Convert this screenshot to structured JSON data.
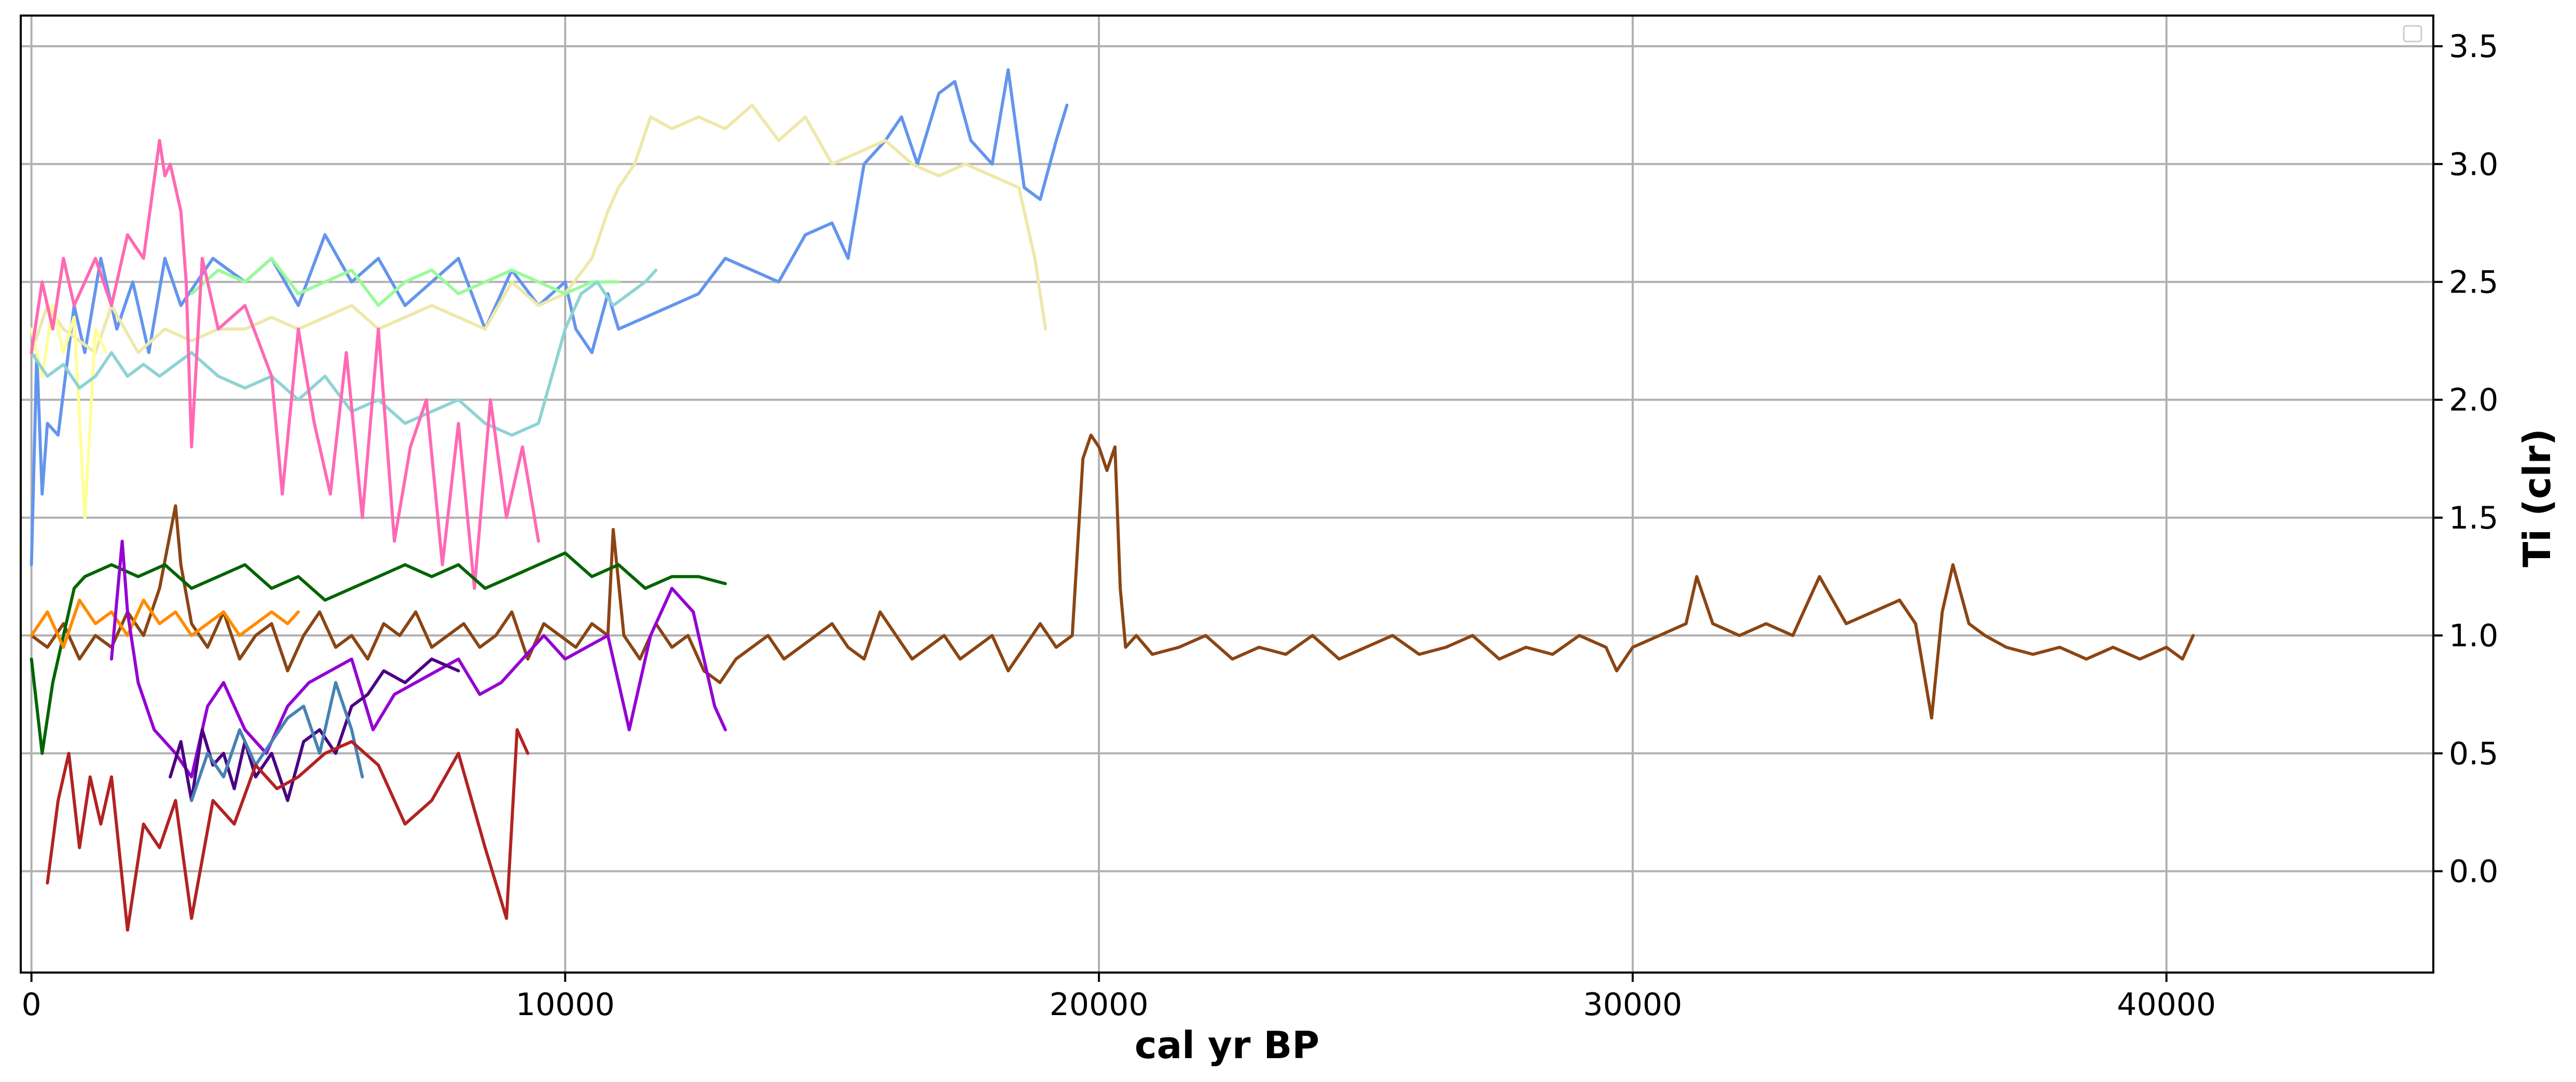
{
  "chart_data": {
    "type": "line",
    "title": "",
    "xlabel": "cal yr BP",
    "ylabel": "Ti (clr)",
    "xlim": [
      -200,
      45000
    ],
    "ylim": [
      -0.43,
      3.63
    ],
    "xticks": [
      0,
      10000,
      20000,
      30000,
      40000
    ],
    "xtick_labels": [
      "0",
      "10000",
      "20000",
      "30000",
      "40000"
    ],
    "yticks": [
      0.0,
      0.5,
      1.0,
      1.5,
      2.0,
      2.5,
      3.0,
      3.5
    ],
    "ytick_labels": [
      "0.0",
      "0.5",
      "1.0",
      "1.5",
      "2.0",
      "2.5",
      "3.0",
      "3.5"
    ],
    "y_axis_side": "right",
    "grid": true,
    "legend": {
      "placement": "top-right",
      "entries": []
    },
    "series": [
      {
        "color": "#8B4513",
        "x": [
          0,
          300,
          600,
          900,
          1200,
          1500,
          1800,
          2100,
          2400,
          2700,
          2800,
          3000,
          3300,
          3600,
          3900,
          4200,
          4500,
          4800,
          5100,
          5400,
          5700,
          6000,
          6300,
          6600,
          6900,
          7200,
          7500,
          7800,
          8100,
          8400,
          8700,
          9000,
          9300,
          9600,
          9900,
          10200,
          10500,
          10800,
          10900,
          11100,
          11400,
          11700,
          12000,
          12300,
          12600,
          12900,
          13200,
          13500,
          13800,
          14100,
          14400,
          14700,
          15000,
          15300,
          15600,
          15900,
          16200,
          16500,
          16800,
          17100,
          17400,
          17700,
          18000,
          18300,
          18600,
          18900,
          19200,
          19500,
          19700,
          19850,
          20000,
          20150,
          20300,
          20400,
          20500,
          20700,
          21000,
          21500,
          22000,
          22500,
          23000,
          23500,
          24000,
          24500,
          25000,
          25500,
          26000,
          26500,
          27000,
          27500,
          28000,
          28500,
          29000,
          29500,
          29700,
          30000,
          30500,
          31000,
          31200,
          31500,
          32000,
          32500,
          33000,
          33500,
          34000,
          34500,
          35000,
          35300,
          35600,
          35800,
          36000,
          36300,
          36600,
          37000,
          37500,
          38000,
          38500,
          39000,
          39500,
          40000,
          40300,
          40500
        ],
        "y": [
          1.0,
          0.95,
          1.05,
          0.9,
          1.0,
          0.95,
          1.1,
          1.0,
          1.2,
          1.55,
          1.3,
          1.05,
          0.95,
          1.1,
          0.9,
          1.0,
          1.05,
          0.85,
          1.0,
          1.1,
          0.95,
          1.0,
          0.9,
          1.05,
          1.0,
          1.1,
          0.95,
          1.0,
          1.05,
          0.95,
          1.0,
          1.1,
          0.9,
          1.05,
          1.0,
          0.95,
          1.05,
          1.0,
          1.45,
          1.0,
          0.9,
          1.05,
          0.95,
          1.0,
          0.85,
          0.8,
          0.9,
          0.95,
          1.0,
          0.9,
          0.95,
          1.0,
          1.05,
          0.95,
          0.9,
          1.1,
          1.0,
          0.9,
          0.95,
          1.0,
          0.9,
          0.95,
          1.0,
          0.85,
          0.95,
          1.05,
          0.95,
          1.0,
          1.75,
          1.85,
          1.8,
          1.7,
          1.8,
          1.2,
          0.95,
          1.0,
          0.92,
          0.95,
          1.0,
          0.9,
          0.95,
          0.92,
          1.0,
          0.9,
          0.95,
          1.0,
          0.92,
          0.95,
          1.0,
          0.9,
          0.95,
          0.92,
          1.0,
          0.95,
          0.85,
          0.95,
          1.0,
          1.05,
          1.25,
          1.05,
          1.0,
          1.05,
          1.0,
          1.25,
          1.05,
          1.1,
          1.15,
          1.05,
          0.65,
          1.1,
          1.3,
          1.05,
          1.0,
          0.95,
          0.92,
          0.95,
          0.9,
          0.95,
          0.9,
          0.95,
          0.9,
          1.0
        ]
      },
      {
        "color": "#6495ED",
        "x": [
          0,
          100,
          200,
          300,
          500,
          800,
          1000,
          1300,
          1600,
          1900,
          2200,
          2500,
          2800,
          3100,
          3400,
          3700,
          4000,
          4500,
          5000,
          5500,
          6000,
          6500,
          7000,
          7500,
          8000,
          8500,
          9000,
          9500,
          10000,
          10200,
          10500,
          10800,
          11000,
          11500,
          12000,
          12500,
          13000,
          13500,
          14000,
          14500,
          15000,
          15300,
          15600,
          16000,
          16300,
          16600,
          17000,
          17300,
          17600,
          18000,
          18300,
          18600,
          18900,
          19200,
          19400
        ],
        "y": [
          1.3,
          2.2,
          1.6,
          1.9,
          1.85,
          2.4,
          2.2,
          2.6,
          2.3,
          2.5,
          2.2,
          2.6,
          2.4,
          2.5,
          2.6,
          2.55,
          2.5,
          2.6,
          2.4,
          2.7,
          2.5,
          2.6,
          2.4,
          2.5,
          2.6,
          2.3,
          2.55,
          2.4,
          2.5,
          2.3,
          2.2,
          2.45,
          2.3,
          2.35,
          2.4,
          2.45,
          2.6,
          2.55,
          2.5,
          2.7,
          2.75,
          2.6,
          3.0,
          3.1,
          3.2,
          3.0,
          3.3,
          3.35,
          3.1,
          3.0,
          3.4,
          2.9,
          2.85,
          3.1,
          3.25
        ]
      },
      {
        "color": "#EEE8AA",
        "x": [
          0,
          300,
          600,
          900,
          1200,
          1500,
          2000,
          2500,
          3000,
          3500,
          4000,
          4500,
          5000,
          5500,
          6000,
          6500,
          7000,
          7500,
          8000,
          8500,
          9000,
          9500,
          10000,
          10500,
          10800,
          11000,
          11300,
          11600,
          12000,
          12500,
          13000,
          13500,
          14000,
          14500,
          15000,
          15500,
          16000,
          16500,
          17000,
          17500,
          18000,
          18500,
          18800,
          19000
        ],
        "y": [
          2.2,
          2.4,
          2.3,
          2.25,
          2.2,
          2.4,
          2.2,
          2.3,
          2.25,
          2.3,
          2.3,
          2.35,
          2.3,
          2.35,
          2.4,
          2.3,
          2.35,
          2.4,
          2.35,
          2.3,
          2.5,
          2.4,
          2.45,
          2.6,
          2.8,
          2.9,
          3.0,
          3.2,
          3.15,
          3.2,
          3.15,
          3.25,
          3.1,
          3.2,
          3.0,
          3.05,
          3.1,
          3.0,
          2.95,
          3.0,
          2.95,
          2.9,
          2.6,
          2.3
        ]
      },
      {
        "color": "#FFFF99",
        "x": [
          0,
          200,
          400,
          600,
          800,
          1000,
          1200,
          1400
        ],
        "y": [
          2.3,
          2.1,
          2.4,
          2.2,
          2.35,
          1.5,
          2.3,
          2.2
        ]
      },
      {
        "color": "#98FB98",
        "x": [
          3000,
          3500,
          4000,
          4500,
          5000,
          5500,
          6000,
          6500,
          7000,
          7500,
          8000,
          8500,
          9000,
          9500,
          10000,
          10500,
          11000
        ],
        "y": [
          2.45,
          2.55,
          2.5,
          2.6,
          2.45,
          2.5,
          2.55,
          2.4,
          2.5,
          2.55,
          2.45,
          2.5,
          2.55,
          2.5,
          2.45,
          2.5,
          2.5
        ]
      },
      {
        "color": "#8FD3D3",
        "x": [
          0,
          300,
          600,
          900,
          1200,
          1500,
          1800,
          2100,
          2400,
          2700,
          3000,
          3500,
          4000,
          4500,
          5000,
          5500,
          6000,
          6500,
          7000,
          7500,
          8000,
          8500,
          9000,
          9500,
          10000,
          10300,
          10600,
          10900,
          11200,
          11500,
          11700
        ],
        "y": [
          2.2,
          2.1,
          2.15,
          2.05,
          2.1,
          2.2,
          2.1,
          2.15,
          2.1,
          2.15,
          2.2,
          2.1,
          2.05,
          2.1,
          2.0,
          2.1,
          1.95,
          2.0,
          1.9,
          1.95,
          2.0,
          1.9,
          1.85,
          1.9,
          2.3,
          2.45,
          2.5,
          2.4,
          2.45,
          2.5,
          2.55
        ]
      },
      {
        "color": "#FF69B4",
        "x": [
          0,
          200,
          400,
          600,
          800,
          1000,
          1200,
          1500,
          1800,
          2100,
          2400,
          2500,
          2600,
          2800,
          2900,
          3000,
          3100,
          3200,
          3500,
          4000,
          4500,
          4700,
          5000,
          5300,
          5600,
          5900,
          6200,
          6500,
          6800,
          7100,
          7400,
          7700,
          8000,
          8300,
          8600,
          8900,
          9200,
          9500
        ],
        "y": [
          2.2,
          2.5,
          2.3,
          2.6,
          2.4,
          2.5,
          2.6,
          2.4,
          2.7,
          2.6,
          3.1,
          2.95,
          3.0,
          2.8,
          2.5,
          1.8,
          2.2,
          2.6,
          2.3,
          2.4,
          2.1,
          1.6,
          2.3,
          1.9,
          1.6,
          2.2,
          1.5,
          2.3,
          1.4,
          1.8,
          2.0,
          1.3,
          1.9,
          1.2,
          2.0,
          1.5,
          1.8,
          1.4
        ]
      },
      {
        "color": "#006400",
        "x": [
          0,
          200,
          400,
          600,
          800,
          1000,
          1500,
          2000,
          2500,
          3000,
          3500,
          4000,
          4500,
          5000,
          5500,
          6000,
          6500,
          7000,
          7500,
          8000,
          8500,
          9000,
          9500,
          10000,
          10500,
          11000,
          11500,
          12000,
          12500,
          13000
        ],
        "y": [
          0.9,
          0.5,
          0.8,
          1.0,
          1.2,
          1.25,
          1.3,
          1.25,
          1.3,
          1.2,
          1.25,
          1.3,
          1.2,
          1.25,
          1.15,
          1.2,
          1.25,
          1.3,
          1.25,
          1.3,
          1.2,
          1.25,
          1.3,
          1.35,
          1.25,
          1.3,
          1.2,
          1.25,
          1.25,
          1.22
        ]
      },
      {
        "color": "#FF8C00",
        "x": [
          0,
          300,
          600,
          900,
          1200,
          1500,
          1800,
          2100,
          2400,
          2700,
          3000,
          3300,
          3600,
          3900,
          4200,
          4500,
          4800,
          5000
        ],
        "y": [
          1.0,
          1.1,
          0.95,
          1.15,
          1.05,
          1.1,
          1.0,
          1.15,
          1.05,
          1.1,
          1.0,
          1.05,
          1.1,
          1.0,
          1.05,
          1.1,
          1.05,
          1.1
        ]
      },
      {
        "color": "#9400D3",
        "x": [
          1500,
          1700,
          1800,
          2000,
          2300,
          2700,
          3000,
          3300,
          3600,
          4000,
          4400,
          4800,
          5200,
          5600,
          6000,
          6400,
          6800,
          7200,
          7600,
          8000,
          8400,
          8800,
          9200,
          9600,
          10000,
          10400,
          10800,
          11200,
          11600,
          12000,
          12400,
          12800,
          13000
        ],
        "y": [
          0.9,
          1.4,
          1.1,
          0.8,
          0.6,
          0.5,
          0.4,
          0.7,
          0.8,
          0.6,
          0.5,
          0.7,
          0.8,
          0.85,
          0.9,
          0.6,
          0.75,
          0.8,
          0.85,
          0.9,
          0.75,
          0.8,
          0.9,
          1.0,
          0.9,
          0.95,
          1.0,
          0.6,
          1.0,
          1.2,
          1.1,
          0.7,
          0.6
        ]
      },
      {
        "color": "#4B0082",
        "x": [
          2600,
          2800,
          3000,
          3200,
          3400,
          3600,
          3800,
          4000,
          4200,
          4500,
          4800,
          5100,
          5400,
          5700,
          6000,
          6300,
          6600,
          7000,
          7500,
          8000
        ],
        "y": [
          0.4,
          0.55,
          0.3,
          0.6,
          0.45,
          0.5,
          0.35,
          0.55,
          0.4,
          0.5,
          0.3,
          0.55,
          0.6,
          0.5,
          0.7,
          0.75,
          0.85,
          0.8,
          0.9,
          0.85
        ]
      },
      {
        "color": "#4682B4",
        "x": [
          3000,
          3300,
          3600,
          3900,
          4200,
          4500,
          4800,
          5100,
          5400,
          5700,
          6000,
          6200
        ],
        "y": [
          0.3,
          0.5,
          0.4,
          0.6,
          0.45,
          0.55,
          0.65,
          0.7,
          0.5,
          0.8,
          0.6,
          0.4
        ]
      },
      {
        "color": "#B22222",
        "x": [
          300,
          500,
          700,
          900,
          1100,
          1300,
          1500,
          1800,
          2100,
          2400,
          2700,
          3000,
          3400,
          3800,
          4200,
          4600,
          5000,
          5500,
          6000,
          6500,
          7000,
          7500,
          8000,
          8500,
          8700,
          8900,
          9100,
          9300
        ],
        "y": [
          -0.05,
          0.3,
          0.5,
          0.1,
          0.4,
          0.2,
          0.4,
          -0.25,
          0.2,
          0.1,
          0.3,
          -0.2,
          0.3,
          0.2,
          0.45,
          0.35,
          0.4,
          0.5,
          0.55,
          0.45,
          0.2,
          0.3,
          0.5,
          0.1,
          -0.05,
          -0.2,
          0.6,
          0.5
        ]
      }
    ]
  }
}
